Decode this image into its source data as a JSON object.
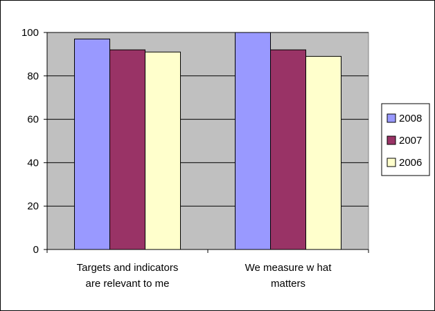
{
  "chart_data": {
    "type": "bar",
    "title": "",
    "xlabel": "",
    "ylabel": "",
    "categories": [
      [
        "Targets and indicators",
        "are relevant to me"
      ],
      [
        "We measure w hat",
        "matters"
      ]
    ],
    "series": [
      {
        "name": "2008",
        "color": "#9999ff",
        "values": [
          97,
          100
        ]
      },
      {
        "name": "2007",
        "color": "#993366",
        "values": [
          92,
          92
        ]
      },
      {
        "name": "2006",
        "color": "#ffffcc",
        "values": [
          91,
          89
        ]
      }
    ],
    "ylim": [
      0,
      100
    ],
    "yticks": [
      0,
      20,
      40,
      60,
      80,
      100
    ],
    "grid": true,
    "plot_background": "#c0c0c0",
    "legend": "right"
  }
}
